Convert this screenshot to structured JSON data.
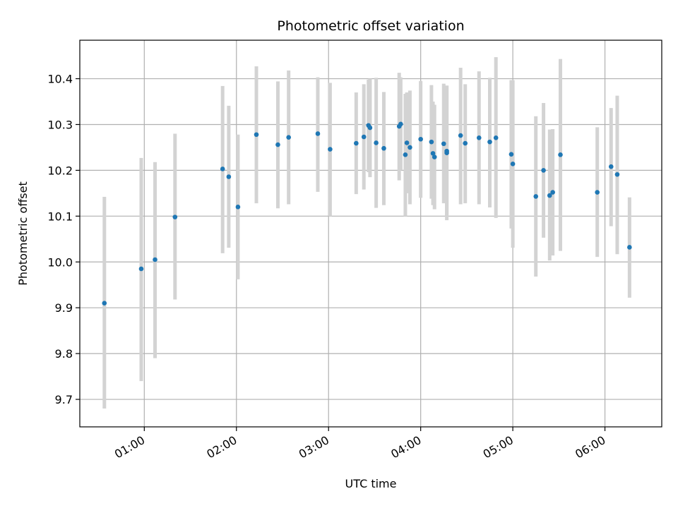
{
  "chart_data": {
    "type": "scatter",
    "title": "Photometric offset variation",
    "xlabel": "UTC time",
    "ylabel": "Photometric offset",
    "x_unit": "UTC time (HH:MM)",
    "xlim": [
      "00:18",
      "06:37"
    ],
    "ylim": [
      9.64,
      10.484
    ],
    "x_ticks": [
      "01:00",
      "02:00",
      "03:00",
      "04:00",
      "05:00",
      "06:00"
    ],
    "y_ticks": [
      "9.7",
      "9.8",
      "9.9",
      "10.0",
      "10.1",
      "10.2",
      "10.3",
      "10.4"
    ],
    "grid": true,
    "marker_color": "#1f77b4",
    "errorbar_color": "#d3d3d3",
    "points": [
      {
        "x": "00:34",
        "y": 9.91,
        "ylo": 9.68,
        "yhi": 10.142
      },
      {
        "x": "00:58",
        "y": 9.985,
        "ylo": 9.74,
        "yhi": 10.227
      },
      {
        "x": "01:07",
        "y": 10.005,
        "ylo": 9.79,
        "yhi": 10.218
      },
      {
        "x": "01:20",
        "y": 10.098,
        "ylo": 9.918,
        "yhi": 10.28
      },
      {
        "x": "01:51",
        "y": 10.203,
        "ylo": 10.019,
        "yhi": 10.384
      },
      {
        "x": "01:55",
        "y": 10.186,
        "ylo": 10.031,
        "yhi": 10.341
      },
      {
        "x": "02:01",
        "y": 10.12,
        "ylo": 9.962,
        "yhi": 10.278
      },
      {
        "x": "02:13",
        "y": 10.278,
        "ylo": 10.128,
        "yhi": 10.427
      },
      {
        "x": "02:27",
        "y": 10.256,
        "ylo": 10.117,
        "yhi": 10.394
      },
      {
        "x": "02:34",
        "y": 10.272,
        "ylo": 10.126,
        "yhi": 10.418
      },
      {
        "x": "02:53",
        "y": 10.28,
        "ylo": 10.153,
        "yhi": 10.403
      },
      {
        "x": "03:01",
        "y": 10.246,
        "ylo": 10.1,
        "yhi": 10.391
      },
      {
        "x": "03:18",
        "y": 10.259,
        "ylo": 10.148,
        "yhi": 10.37
      },
      {
        "x": "03:23",
        "y": 10.273,
        "ylo": 10.158,
        "yhi": 10.388
      },
      {
        "x": "03:26",
        "y": 10.298,
        "ylo": 10.196,
        "yhi": 10.398
      },
      {
        "x": "03:27",
        "y": 10.293,
        "ylo": 10.185,
        "yhi": 10.4
      },
      {
        "x": "03:31",
        "y": 10.26,
        "ylo": 10.118,
        "yhi": 10.402
      },
      {
        "x": "03:36",
        "y": 10.248,
        "ylo": 10.124,
        "yhi": 10.371
      },
      {
        "x": "03:46",
        "y": 10.296,
        "ylo": 10.178,
        "yhi": 10.413
      },
      {
        "x": "03:47",
        "y": 10.301,
        "ylo": 10.2,
        "yhi": 10.403
      },
      {
        "x": "03:50",
        "y": 10.234,
        "ylo": 10.1,
        "yhi": 10.367
      },
      {
        "x": "03:51",
        "y": 10.26,
        "ylo": 10.15,
        "yhi": 10.37
      },
      {
        "x": "03:53",
        "y": 10.25,
        "ylo": 10.126,
        "yhi": 10.374
      },
      {
        "x": "04:00",
        "y": 10.268,
        "ylo": 10.14,
        "yhi": 10.395
      },
      {
        "x": "04:07",
        "y": 10.262,
        "ylo": 10.138,
        "yhi": 10.386
      },
      {
        "x": "04:08",
        "y": 10.237,
        "ylo": 10.124,
        "yhi": 10.35
      },
      {
        "x": "04:09",
        "y": 10.229,
        "ylo": 10.115,
        "yhi": 10.343
      },
      {
        "x": "04:15",
        "y": 10.258,
        "ylo": 10.128,
        "yhi": 10.389
      },
      {
        "x": "04:17",
        "y": 10.238,
        "ylo": 10.091,
        "yhi": 10.385
      },
      {
        "x": "04:17",
        "y": 10.242,
        "ylo": 10.1,
        "yhi": 10.384
      },
      {
        "x": "04:26",
        "y": 10.276,
        "ylo": 10.126,
        "yhi": 10.424
      },
      {
        "x": "04:29",
        "y": 10.259,
        "ylo": 10.128,
        "yhi": 10.388
      },
      {
        "x": "04:38",
        "y": 10.271,
        "ylo": 10.126,
        "yhi": 10.416
      },
      {
        "x": "04:45",
        "y": 10.262,
        "ylo": 10.119,
        "yhi": 10.402
      },
      {
        "x": "04:49",
        "y": 10.271,
        "ylo": 10.096,
        "yhi": 10.447
      },
      {
        "x": "04:59",
        "y": 10.235,
        "ylo": 10.073,
        "yhi": 10.397
      },
      {
        "x": "05:00",
        "y": 10.214,
        "ylo": 10.031,
        "yhi": 10.397
      },
      {
        "x": "05:15",
        "y": 10.143,
        "ylo": 9.968,
        "yhi": 10.318
      },
      {
        "x": "05:20",
        "y": 10.2,
        "ylo": 10.053,
        "yhi": 10.347
      },
      {
        "x": "05:24",
        "y": 10.145,
        "ylo": 10.003,
        "yhi": 10.289
      },
      {
        "x": "05:26",
        "y": 10.152,
        "ylo": 10.014,
        "yhi": 10.29
      },
      {
        "x": "05:31",
        "y": 10.234,
        "ylo": 10.024,
        "yhi": 10.443
      },
      {
        "x": "05:55",
        "y": 10.152,
        "ylo": 10.011,
        "yhi": 10.294
      },
      {
        "x": "06:04",
        "y": 10.208,
        "ylo": 10.078,
        "yhi": 10.336
      },
      {
        "x": "06:08",
        "y": 10.191,
        "ylo": 10.017,
        "yhi": 10.363
      },
      {
        "x": "06:16",
        "y": 10.032,
        "ylo": 9.922,
        "yhi": 10.141
      }
    ]
  }
}
